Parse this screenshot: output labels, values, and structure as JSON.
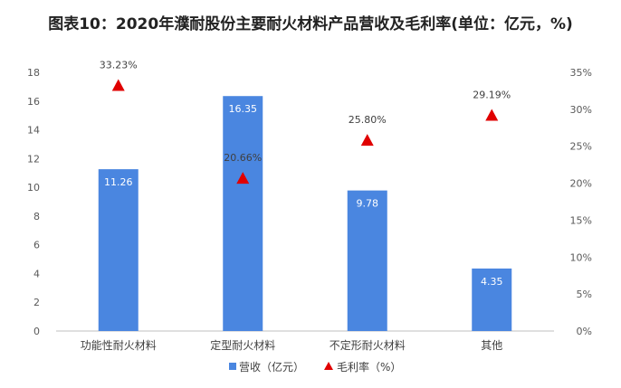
{
  "title": "图表10：2020年濮耐股份主要耐火材料产品营收及毛利率(单位：亿元，%)",
  "colors": {
    "bar": "#4a86e0",
    "marker": "#e00000"
  },
  "chart_data": {
    "type": "bar+scatter",
    "title": "图表10：2020年濮耐股份主要耐火材料产品营收及毛利率(单位：亿元，%)",
    "categories": [
      "功能性耐火材料",
      "定型耐火材料",
      "不定形耐火材料",
      "其他"
    ],
    "series": [
      {
        "name": "营收（亿元）",
        "type": "bar",
        "axis": "left",
        "values": [
          11.26,
          16.35,
          9.78,
          4.35
        ],
        "labels": [
          "11.26",
          "16.35",
          "9.78",
          "4.35"
        ]
      },
      {
        "name": "毛利率（%）",
        "type": "scatter",
        "axis": "right",
        "values": [
          33.23,
          20.66,
          25.8,
          29.19
        ],
        "labels": [
          "33.23%",
          "20.66%",
          "25.80%",
          "29.19%"
        ]
      }
    ],
    "y_left": {
      "min": 0,
      "max": 18,
      "ticks": [
        "0",
        "2",
        "4",
        "6",
        "8",
        "10",
        "12",
        "14",
        "16",
        "18"
      ]
    },
    "y_right": {
      "min": 0,
      "max": 35,
      "ticks": [
        "0%",
        "5%",
        "10%",
        "15%",
        "20%",
        "25%",
        "30%",
        "35%"
      ]
    },
    "legend_position": "bottom",
    "grid": false
  }
}
